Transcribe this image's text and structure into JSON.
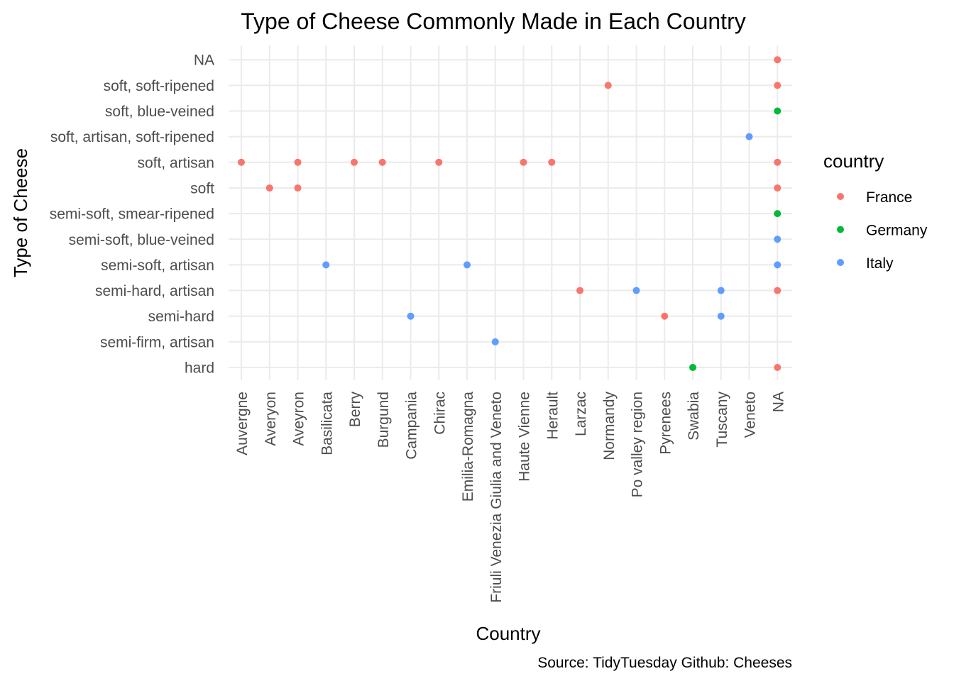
{
  "chart_data": {
    "type": "scatter",
    "title": "Type of Cheese Commonly Made in Each Country",
    "xlabel": "Country",
    "ylabel": "Type of Cheese",
    "caption": "Source: TidyTuesday Github: Cheeses",
    "grid": true,
    "legend_title": "country",
    "legend_position": "right",
    "categories_x": [
      "Auvergne",
      "Averyon",
      "Aveyron",
      "Basilicata",
      "Berry",
      "Burgund",
      "Campania",
      "Chirac",
      "Emilia-Romagna",
      "Friuli Venezia Giulia and Veneto",
      "Haute Vienne",
      "Herault",
      "Larzac",
      "Normandy",
      "Po valley region",
      "Pyrenees",
      "Swabia",
      "Tuscany",
      "Veneto",
      "NA"
    ],
    "categories_y": [
      "hard",
      "semi-firm, artisan",
      "semi-hard",
      "semi-hard, artisan",
      "semi-soft, artisan",
      "semi-soft, blue-veined",
      "semi-soft, smear-ripened",
      "soft",
      "soft, artisan",
      "soft, artisan, soft-ripened",
      "soft, blue-veined",
      "soft, soft-ripened",
      "NA"
    ],
    "series": [
      {
        "name": "France",
        "color": "#F8766D",
        "points": [
          {
            "x": "Auvergne",
            "y": "soft, artisan"
          },
          {
            "x": "Averyon",
            "y": "soft"
          },
          {
            "x": "Aveyron",
            "y": "soft, artisan"
          },
          {
            "x": "Aveyron",
            "y": "soft"
          },
          {
            "x": "Berry",
            "y": "soft, artisan"
          },
          {
            "x": "Burgund",
            "y": "soft, artisan"
          },
          {
            "x": "Chirac",
            "y": "soft, artisan"
          },
          {
            "x": "Haute Vienne",
            "y": "soft, artisan"
          },
          {
            "x": "Herault",
            "y": "soft, artisan"
          },
          {
            "x": "Larzac",
            "y": "semi-hard, artisan"
          },
          {
            "x": "Normandy",
            "y": "soft, soft-ripened"
          },
          {
            "x": "Pyrenees",
            "y": "semi-hard"
          },
          {
            "x": "NA",
            "y": "NA"
          },
          {
            "x": "NA",
            "y": "soft, soft-ripened"
          },
          {
            "x": "NA",
            "y": "soft, artisan"
          },
          {
            "x": "NA",
            "y": "soft"
          },
          {
            "x": "NA",
            "y": "semi-hard, artisan"
          },
          {
            "x": "NA",
            "y": "hard"
          }
        ]
      },
      {
        "name": "Germany",
        "color": "#00BA38",
        "points": [
          {
            "x": "Swabia",
            "y": "hard"
          },
          {
            "x": "NA",
            "y": "soft, blue-veined"
          },
          {
            "x": "NA",
            "y": "semi-soft, smear-ripened"
          }
        ]
      },
      {
        "name": "Italy",
        "color": "#619CFF",
        "points": [
          {
            "x": "Basilicata",
            "y": "semi-soft, artisan"
          },
          {
            "x": "Campania",
            "y": "semi-hard"
          },
          {
            "x": "Emilia-Romagna",
            "y": "semi-soft, artisan"
          },
          {
            "x": "Friuli Venezia Giulia and Veneto",
            "y": "semi-firm, artisan"
          },
          {
            "x": "Po valley region",
            "y": "semi-hard, artisan"
          },
          {
            "x": "Tuscany",
            "y": "semi-hard, artisan"
          },
          {
            "x": "Tuscany",
            "y": "semi-hard"
          },
          {
            "x": "Veneto",
            "y": "soft, artisan, soft-ripened"
          },
          {
            "x": "NA",
            "y": "semi-soft, blue-veined"
          },
          {
            "x": "NA",
            "y": "semi-soft, artisan"
          }
        ]
      }
    ]
  }
}
